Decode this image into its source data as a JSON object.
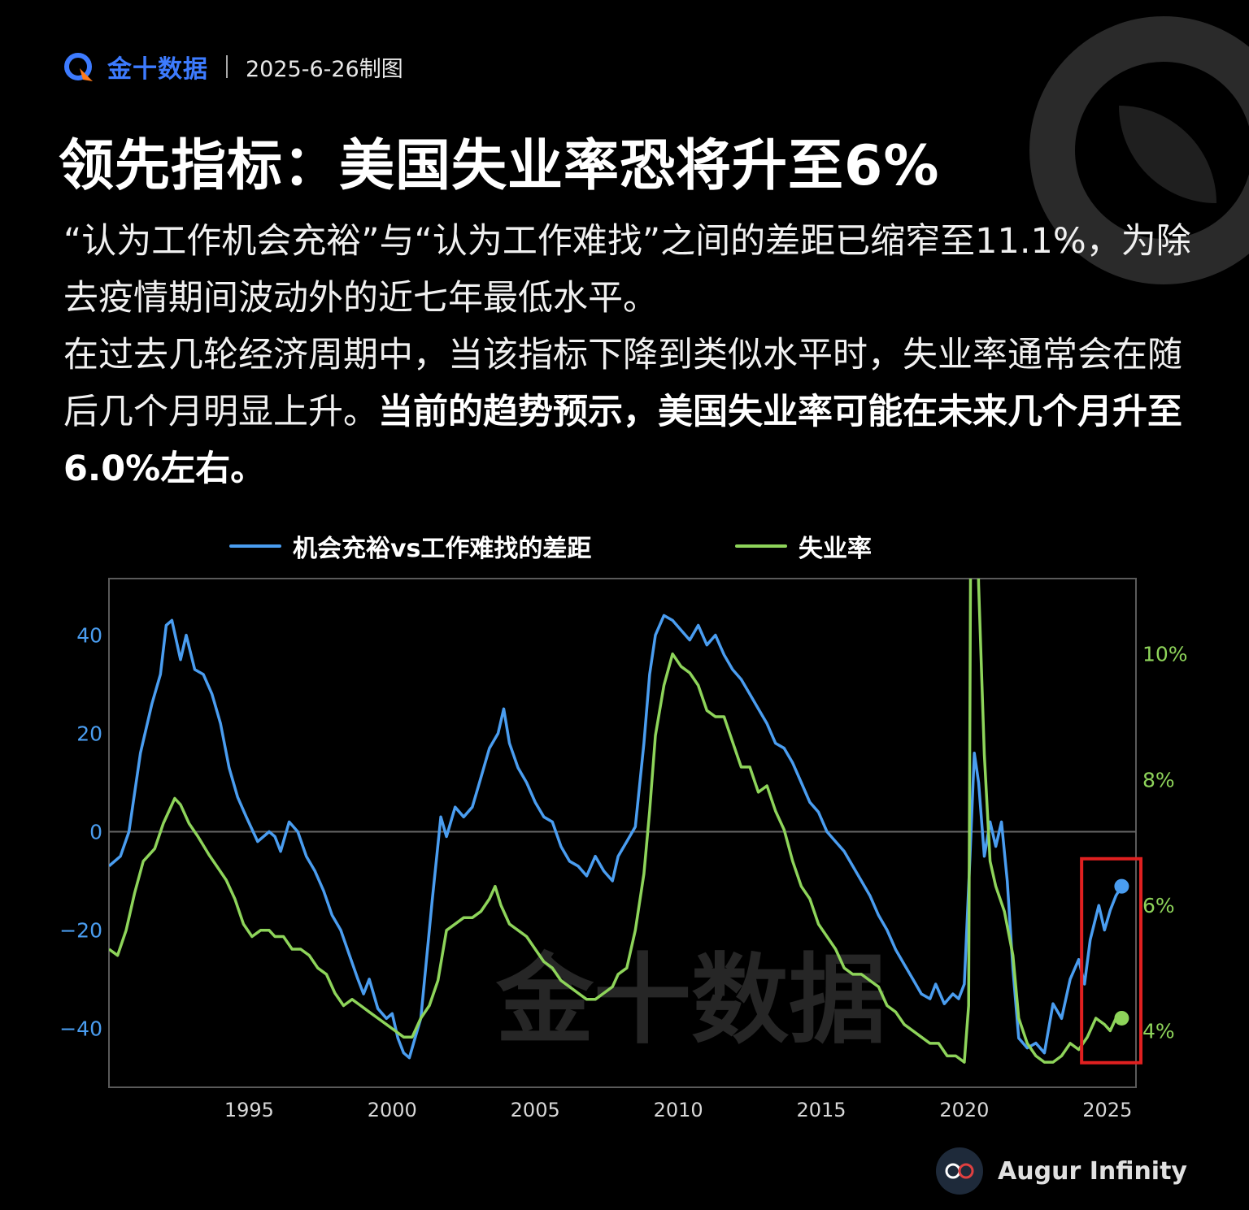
{
  "header": {
    "brand_name": "金十数据",
    "date_label": "2025-6-26制图"
  },
  "title": "领先指标：美国失业率恐将升至6%",
  "description": {
    "para1": "“认为工作机会充裕”与“认为工作难找”之间的差距已缩窄至11.1%，为除去疫情期间波动外的近七年最低水平。",
    "para2_normal": "在过去几轮经济周期中，当该指标下降到类似水平时，失业率通常会在随后几个月明显上升。",
    "para2_bold": "当前的趋势预示，美国失业率可能在未来几个月升至6.0%左右。"
  },
  "watermark": "金十数据",
  "footer": {
    "brand": "Augur Infinity"
  },
  "colors": {
    "gap_series": "#4a9df0",
    "unemployment_series": "#8ed45a",
    "highlight_box": "#e02020",
    "brand_blue": "#3d7bff"
  },
  "chart_data": {
    "type": "line",
    "x_ticks": [
      1995,
      2000,
      2005,
      2010,
      2015,
      2020,
      2025
    ],
    "xlim": [
      1990.1,
      2026.0
    ],
    "y_left": {
      "ticks": [
        40,
        20,
        0,
        -20,
        -40
      ],
      "tick_labels": [
        "40",
        "20",
        "0",
        "−20",
        "−40"
      ],
      "lim": [
        -52,
        51.5
      ]
    },
    "y_right": {
      "ticks": [
        10,
        8,
        6,
        4
      ],
      "tick_labels": [
        "10%",
        "8%",
        "6%",
        "4%"
      ],
      "lim": [
        3.1,
        11.2
      ]
    },
    "legend_position": "top",
    "zero_line": true,
    "highlight_range": {
      "x": [
        2024.1,
        2026.0
      ],
      "note": "highlighted latest values"
    },
    "series": [
      {
        "name": "机会充裕vs工作难找的差距",
        "axis": "left",
        "points": [
          [
            1990.1,
            -7
          ],
          [
            1990.5,
            -5
          ],
          [
            1990.8,
            0
          ],
          [
            1991.2,
            16
          ],
          [
            1991.6,
            26
          ],
          [
            1991.9,
            32
          ],
          [
            1992.1,
            42
          ],
          [
            1992.3,
            43
          ],
          [
            1992.6,
            35
          ],
          [
            1992.8,
            40
          ],
          [
            1993.1,
            33
          ],
          [
            1993.4,
            32
          ],
          [
            1993.7,
            28
          ],
          [
            1994.0,
            22
          ],
          [
            1994.3,
            13
          ],
          [
            1994.6,
            7
          ],
          [
            1994.9,
            3
          ],
          [
            1995.3,
            -2
          ],
          [
            1995.7,
            0
          ],
          [
            1995.9,
            -1
          ],
          [
            1996.1,
            -4
          ],
          [
            1996.4,
            2
          ],
          [
            1996.7,
            0
          ],
          [
            1997.0,
            -5
          ],
          [
            1997.3,
            -8
          ],
          [
            1997.6,
            -12
          ],
          [
            1997.9,
            -17
          ],
          [
            1998.2,
            -20
          ],
          [
            1998.5,
            -25
          ],
          [
            1998.8,
            -30
          ],
          [
            1999.0,
            -33
          ],
          [
            1999.2,
            -30
          ],
          [
            1999.5,
            -36
          ],
          [
            1999.8,
            -38
          ],
          [
            2000.0,
            -37
          ],
          [
            2000.2,
            -42
          ],
          [
            2000.4,
            -45
          ],
          [
            2000.6,
            -46
          ],
          [
            2000.8,
            -42
          ],
          [
            2001.0,
            -38
          ],
          [
            2001.2,
            -26
          ],
          [
            2001.4,
            -14
          ],
          [
            2001.7,
            3
          ],
          [
            2001.9,
            -1
          ],
          [
            2002.2,
            5
          ],
          [
            2002.5,
            3
          ],
          [
            2002.8,
            5
          ],
          [
            2003.1,
            11
          ],
          [
            2003.4,
            17
          ],
          [
            2003.7,
            20
          ],
          [
            2003.9,
            25
          ],
          [
            2004.1,
            18
          ],
          [
            2004.4,
            13
          ],
          [
            2004.7,
            10
          ],
          [
            2005.0,
            6
          ],
          [
            2005.3,
            3
          ],
          [
            2005.6,
            2
          ],
          [
            2005.9,
            -3
          ],
          [
            2006.2,
            -6
          ],
          [
            2006.5,
            -7
          ],
          [
            2006.8,
            -9
          ],
          [
            2007.1,
            -5
          ],
          [
            2007.4,
            -8
          ],
          [
            2007.7,
            -10
          ],
          [
            2007.9,
            -5
          ],
          [
            2008.2,
            -2
          ],
          [
            2008.5,
            1
          ],
          [
            2008.8,
            18
          ],
          [
            2009.0,
            32
          ],
          [
            2009.2,
            40
          ],
          [
            2009.5,
            44
          ],
          [
            2009.8,
            43
          ],
          [
            2010.1,
            41
          ],
          [
            2010.4,
            39
          ],
          [
            2010.7,
            42
          ],
          [
            2011.0,
            38
          ],
          [
            2011.3,
            40
          ],
          [
            2011.6,
            36
          ],
          [
            2011.9,
            33
          ],
          [
            2012.2,
            31
          ],
          [
            2012.5,
            28
          ],
          [
            2012.8,
            25
          ],
          [
            2013.1,
            22
          ],
          [
            2013.4,
            18
          ],
          [
            2013.7,
            17
          ],
          [
            2014.0,
            14
          ],
          [
            2014.3,
            10
          ],
          [
            2014.6,
            6
          ],
          [
            2014.9,
            4
          ],
          [
            2015.2,
            0
          ],
          [
            2015.5,
            -2
          ],
          [
            2015.8,
            -4
          ],
          [
            2016.1,
            -7
          ],
          [
            2016.4,
            -10
          ],
          [
            2016.7,
            -13
          ],
          [
            2017.0,
            -17
          ],
          [
            2017.3,
            -20
          ],
          [
            2017.6,
            -24
          ],
          [
            2017.9,
            -27
          ],
          [
            2018.2,
            -30
          ],
          [
            2018.5,
            -33
          ],
          [
            2018.8,
            -34
          ],
          [
            2019.0,
            -31
          ],
          [
            2019.3,
            -35
          ],
          [
            2019.6,
            -33
          ],
          [
            2019.8,
            -34
          ],
          [
            2020.0,
            -31
          ],
          [
            2020.2,
            -5
          ],
          [
            2020.35,
            16
          ],
          [
            2020.5,
            10
          ],
          [
            2020.7,
            -5
          ],
          [
            2020.9,
            2
          ],
          [
            2021.1,
            -3
          ],
          [
            2021.3,
            2
          ],
          [
            2021.5,
            -10
          ],
          [
            2021.7,
            -28
          ],
          [
            2021.9,
            -42
          ],
          [
            2022.2,
            -44
          ],
          [
            2022.5,
            -43
          ],
          [
            2022.8,
            -45
          ],
          [
            2023.1,
            -35
          ],
          [
            2023.4,
            -38
          ],
          [
            2023.7,
            -30
          ],
          [
            2024.0,
            -26
          ],
          [
            2024.2,
            -31
          ],
          [
            2024.4,
            -22
          ],
          [
            2024.7,
            -15
          ],
          [
            2024.9,
            -20
          ],
          [
            2025.1,
            -16
          ],
          [
            2025.3,
            -13
          ],
          [
            2025.5,
            -11.1
          ]
        ]
      },
      {
        "name": "失业率",
        "axis": "right",
        "points": [
          [
            1990.1,
            5.3
          ],
          [
            1990.4,
            5.2
          ],
          [
            1990.7,
            5.6
          ],
          [
            1991.0,
            6.2
          ],
          [
            1991.3,
            6.7
          ],
          [
            1991.7,
            6.9
          ],
          [
            1992.0,
            7.3
          ],
          [
            1992.4,
            7.7
          ],
          [
            1992.6,
            7.6
          ],
          [
            1992.9,
            7.3
          ],
          [
            1993.2,
            7.1
          ],
          [
            1993.6,
            6.8
          ],
          [
            1993.9,
            6.6
          ],
          [
            1994.2,
            6.4
          ],
          [
            1994.5,
            6.1
          ],
          [
            1994.8,
            5.7
          ],
          [
            1995.1,
            5.5
          ],
          [
            1995.4,
            5.6
          ],
          [
            1995.7,
            5.6
          ],
          [
            1995.9,
            5.5
          ],
          [
            1996.2,
            5.5
          ],
          [
            1996.5,
            5.3
          ],
          [
            1996.8,
            5.3
          ],
          [
            1997.1,
            5.2
          ],
          [
            1997.4,
            5.0
          ],
          [
            1997.7,
            4.9
          ],
          [
            1998.0,
            4.6
          ],
          [
            1998.3,
            4.4
          ],
          [
            1998.6,
            4.5
          ],
          [
            1998.9,
            4.4
          ],
          [
            1999.2,
            4.3
          ],
          [
            1999.5,
            4.2
          ],
          [
            1999.8,
            4.1
          ],
          [
            2000.1,
            4.0
          ],
          [
            2000.4,
            3.9
          ],
          [
            2000.7,
            3.9
          ],
          [
            2001.0,
            4.2
          ],
          [
            2001.3,
            4.4
          ],
          [
            2001.6,
            4.8
          ],
          [
            2001.9,
            5.6
          ],
          [
            2002.2,
            5.7
          ],
          [
            2002.5,
            5.8
          ],
          [
            2002.8,
            5.8
          ],
          [
            2003.1,
            5.9
          ],
          [
            2003.4,
            6.1
          ],
          [
            2003.6,
            6.3
          ],
          [
            2003.8,
            6.0
          ],
          [
            2004.1,
            5.7
          ],
          [
            2004.4,
            5.6
          ],
          [
            2004.7,
            5.5
          ],
          [
            2005.0,
            5.3
          ],
          [
            2005.3,
            5.1
          ],
          [
            2005.6,
            5.0
          ],
          [
            2005.9,
            4.8
          ],
          [
            2006.2,
            4.7
          ],
          [
            2006.5,
            4.6
          ],
          [
            2006.8,
            4.5
          ],
          [
            2007.1,
            4.5
          ],
          [
            2007.4,
            4.6
          ],
          [
            2007.7,
            4.7
          ],
          [
            2007.9,
            4.9
          ],
          [
            2008.2,
            5.0
          ],
          [
            2008.5,
            5.6
          ],
          [
            2008.8,
            6.5
          ],
          [
            2009.0,
            7.5
          ],
          [
            2009.2,
            8.7
          ],
          [
            2009.5,
            9.5
          ],
          [
            2009.8,
            10.0
          ],
          [
            2010.1,
            9.8
          ],
          [
            2010.4,
            9.7
          ],
          [
            2010.7,
            9.5
          ],
          [
            2011.0,
            9.1
          ],
          [
            2011.3,
            9.0
          ],
          [
            2011.6,
            9.0
          ],
          [
            2011.9,
            8.6
          ],
          [
            2012.2,
            8.2
          ],
          [
            2012.5,
            8.2
          ],
          [
            2012.8,
            7.8
          ],
          [
            2013.1,
            7.9
          ],
          [
            2013.4,
            7.5
          ],
          [
            2013.7,
            7.2
          ],
          [
            2014.0,
            6.7
          ],
          [
            2014.3,
            6.3
          ],
          [
            2014.6,
            6.1
          ],
          [
            2014.9,
            5.7
          ],
          [
            2015.2,
            5.5
          ],
          [
            2015.5,
            5.3
          ],
          [
            2015.8,
            5.0
          ],
          [
            2016.1,
            4.9
          ],
          [
            2016.4,
            4.9
          ],
          [
            2016.7,
            4.8
          ],
          [
            2017.0,
            4.7
          ],
          [
            2017.3,
            4.4
          ],
          [
            2017.6,
            4.3
          ],
          [
            2017.9,
            4.1
          ],
          [
            2018.2,
            4.0
          ],
          [
            2018.5,
            3.9
          ],
          [
            2018.8,
            3.8
          ],
          [
            2019.1,
            3.8
          ],
          [
            2019.4,
            3.6
          ],
          [
            2019.7,
            3.6
          ],
          [
            2020.0,
            3.5
          ],
          [
            2020.15,
            4.4
          ],
          [
            2020.25,
            14.7
          ],
          [
            2020.4,
            13.3
          ],
          [
            2020.5,
            11.1
          ],
          [
            2020.7,
            8.4
          ],
          [
            2020.9,
            6.7
          ],
          [
            2021.1,
            6.3
          ],
          [
            2021.4,
            5.9
          ],
          [
            2021.7,
            5.2
          ],
          [
            2021.9,
            4.2
          ],
          [
            2022.2,
            3.8
          ],
          [
            2022.5,
            3.6
          ],
          [
            2022.8,
            3.5
          ],
          [
            2023.1,
            3.5
          ],
          [
            2023.4,
            3.6
          ],
          [
            2023.7,
            3.8
          ],
          [
            2024.0,
            3.7
          ],
          [
            2024.3,
            3.9
          ],
          [
            2024.6,
            4.2
          ],
          [
            2024.9,
            4.1
          ],
          [
            2025.1,
            4.0
          ],
          [
            2025.3,
            4.2
          ],
          [
            2025.5,
            4.2
          ]
        ]
      }
    ]
  }
}
